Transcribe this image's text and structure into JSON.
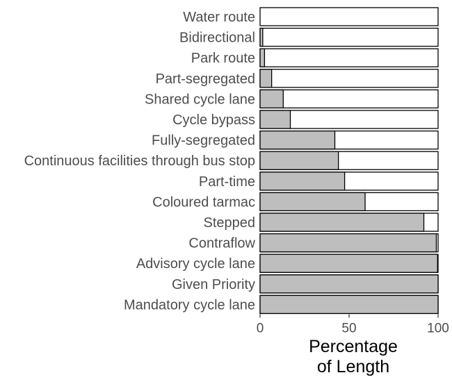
{
  "chart_data": {
    "type": "bar",
    "orientation": "horizontal",
    "stacked_to_total": 100,
    "categories": [
      "Water route",
      "Bidirectional",
      "Park route",
      "Part-segregated",
      "Shared cycle lane",
      "Cycle bypass",
      "Fully-segregated",
      "Continuous facilities through bus stop",
      "Part-time",
      "Coloured tarmac",
      "Stepped",
      "Contraflow",
      "Advisory cycle lane",
      "Given Priority",
      "Mandatory cycle lane"
    ],
    "values": [
      0,
      1.5,
      2.5,
      6.5,
      13,
      17,
      42,
      44,
      47.5,
      59,
      92,
      99,
      99.7,
      100,
      100
    ],
    "xlim": [
      0,
      100
    ],
    "xticks": [
      0,
      50,
      100
    ],
    "xlabel": [
      "Percentage",
      "of Length"
    ],
    "ylabel": "",
    "title": "",
    "grid": false,
    "legend": "none",
    "colors": {
      "filled": "#bebebe",
      "remainder": "#ffffff",
      "outline": "#000000",
      "label_text": "#4d4d4d"
    }
  }
}
